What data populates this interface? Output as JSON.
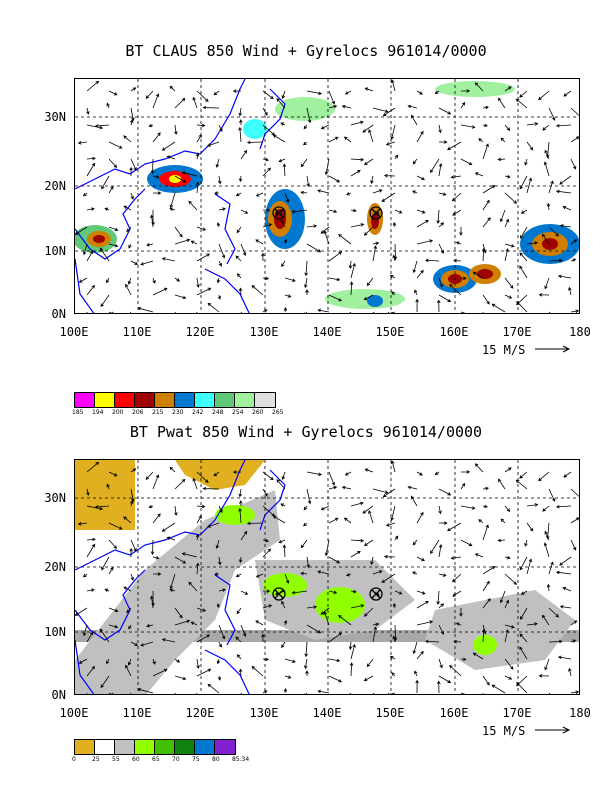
{
  "panel1": {
    "title": "BT CLAUS 850 Wind + Gyrelocs 961014/0000",
    "lat_labels": [
      "30N",
      "20N",
      "10N",
      "0N"
    ],
    "lon_labels": [
      "100E",
      "110E",
      "120E",
      "130E",
      "140E",
      "150E",
      "160E",
      "170E",
      "180"
    ],
    "scale_label": "15 M/S",
    "legend_colors": [
      "#ff00ff",
      "#ffff00",
      "#ff0000",
      "#a00000",
      "#d08000",
      "#0078d0",
      "#40ffff",
      "#60c878",
      "#a0f0a0",
      "#e0e0e0"
    ],
    "legend_ticks": [
      "185",
      "194",
      "200",
      "206",
      "215",
      "230",
      "242",
      "248",
      "254",
      "260",
      "265"
    ]
  },
  "panel2": {
    "title": "BT Pwat 850 Wind + Gyrelocs 961014/0000",
    "lat_labels": [
      "30N",
      "20N",
      "10N",
      "0N"
    ],
    "lon_labels": [
      "100E",
      "110E",
      "120E",
      "130E",
      "140E",
      "150E",
      "160E",
      "170E",
      "180"
    ],
    "scale_label": "15 M/S",
    "legend_colors": [
      "#e0b020",
      "#ffffff",
      "#c0c0c0",
      "#90ff00",
      "#40c000",
      "#108010",
      "#0078d0",
      "#8020d0"
    ],
    "legend_ticks": [
      "0",
      "25",
      "55",
      "60",
      "65",
      "70",
      "75",
      "80",
      "85.34"
    ]
  }
}
